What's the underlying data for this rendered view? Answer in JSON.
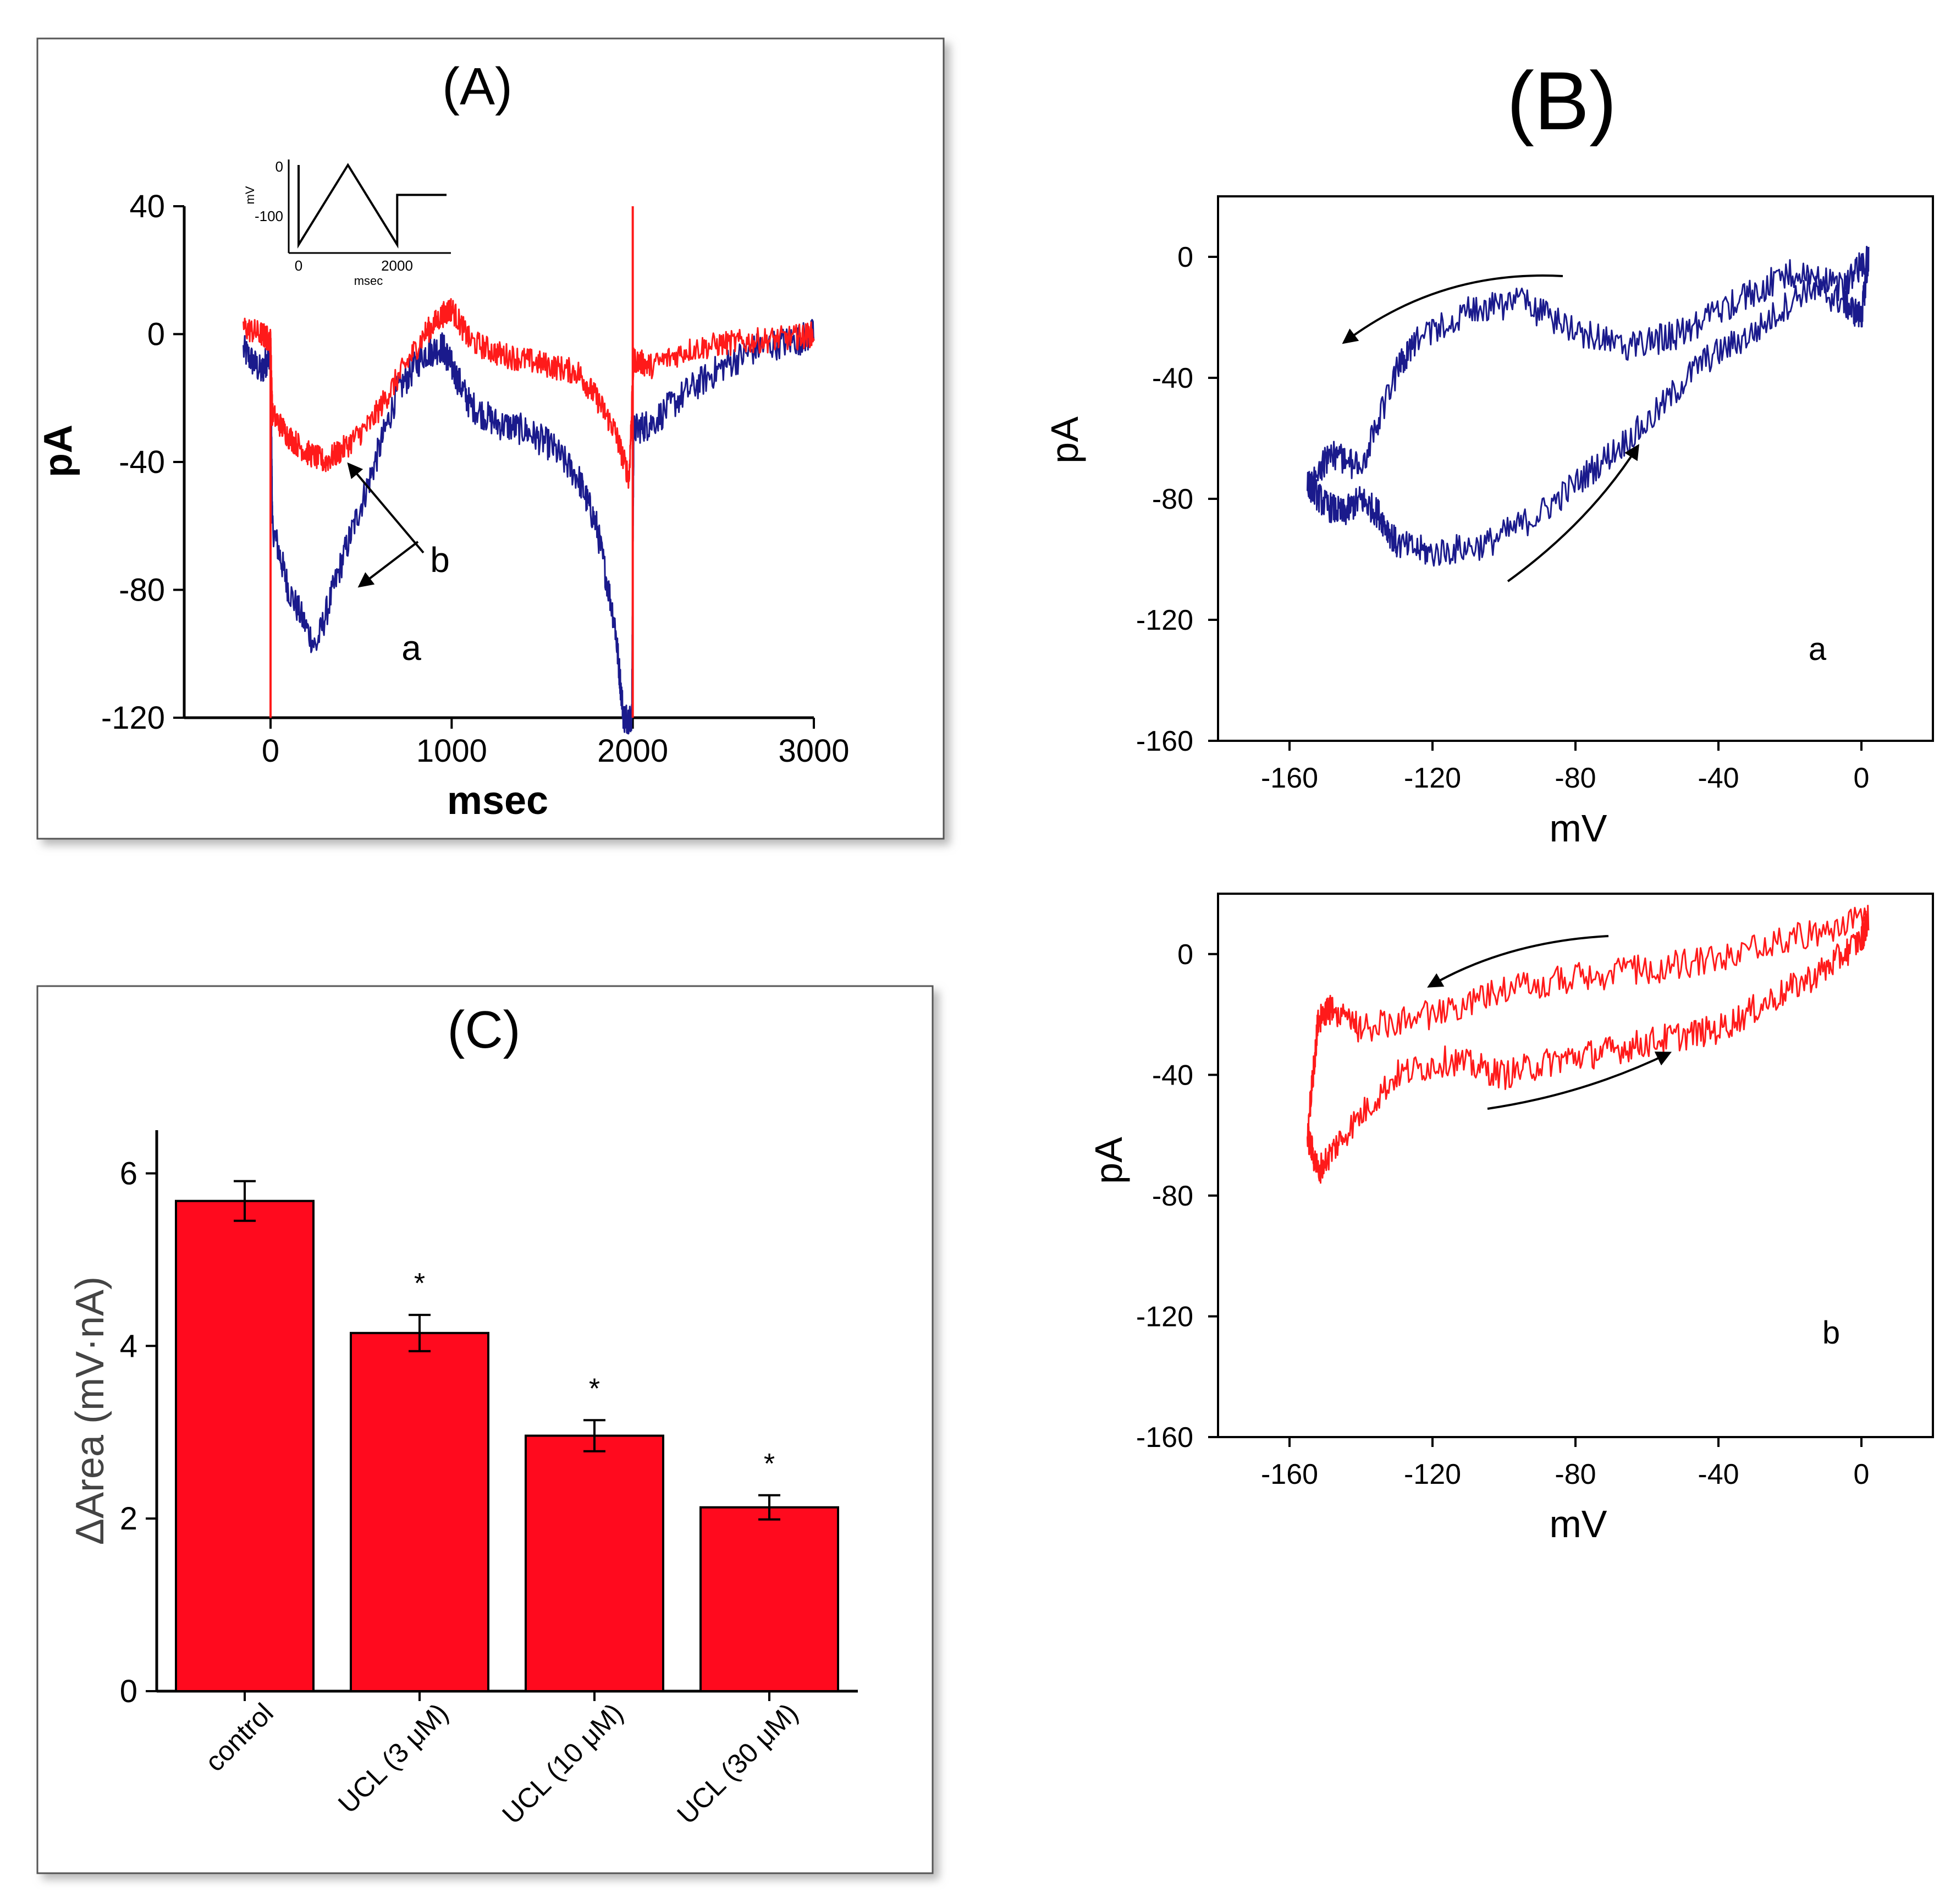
{
  "colors": {
    "trace_a": "#1a1a8c",
    "trace_b": "#ff1a1a",
    "bar": "#ff0a1e",
    "axis": "#000000"
  },
  "panels": {
    "A": {
      "label": "(A)"
    },
    "B": {
      "label": "(B)"
    },
    "C": {
      "label": "(C)"
    }
  },
  "chart_data": [
    {
      "id": "A",
      "type": "line",
      "title": "(A)",
      "xlabel": "msec",
      "ylabel": "pA",
      "xlim": [
        -500,
        3000
      ],
      "ylim": [
        -120,
        40
      ],
      "xticks": [
        "0",
        "1000",
        "2000",
        "3000"
      ],
      "yticks": [
        "40",
        "0",
        "-40",
        "-80",
        "-120"
      ],
      "annotations": [
        "a",
        "b"
      ],
      "series": [
        {
          "name": "a",
          "color": "#1a1a8c",
          "x": [
            -150,
            -50,
            0,
            10,
            100,
            250,
            400,
            550,
            700,
            850,
            950,
            1000,
            1100,
            1250,
            1400,
            1550,
            1700,
            1800,
            1900,
            1950,
            1995,
            2005,
            2100,
            2300,
            2500,
            2700,
            2900,
            3000
          ],
          "y": [
            -5,
            -12,
            -5,
            -60,
            -80,
            -98,
            -70,
            -45,
            -18,
            -6,
            -4,
            -10,
            -22,
            -28,
            -30,
            -35,
            -45,
            -60,
            -90,
            -120,
            -120,
            -30,
            -28,
            -18,
            -10,
            -4,
            -2,
            0
          ]
        },
        {
          "name": "b",
          "color": "#ff1a1a",
          "x": [
            -150,
            -50,
            0,
            10,
            100,
            200,
            300,
            400,
            550,
            700,
            850,
            950,
            1000,
            1100,
            1250,
            1400,
            1550,
            1700,
            1800,
            1900,
            1980,
            2005,
            2100,
            2300,
            2500,
            2700,
            2900,
            3000
          ],
          "y": [
            2,
            0,
            -2,
            -25,
            -32,
            -37,
            -40,
            -36,
            -28,
            -14,
            0,
            6,
            8,
            -2,
            -6,
            -8,
            -10,
            -12,
            -20,
            -30,
            -45,
            -8,
            -10,
            -5,
            -3,
            -2,
            -1,
            0
          ]
        }
      ],
      "inset": {
        "ylabel": "mV",
        "xlabel": "msec",
        "yticks": [
          "0",
          "-100"
        ],
        "xticks": [
          "0",
          "2000"
        ],
        "x": [
          0,
          0,
          1000,
          2000,
          2000,
          3000
        ],
        "y": [
          0,
          -160,
          0,
          -160,
          -60,
          -60
        ]
      }
    },
    {
      "id": "B-a",
      "type": "line",
      "panel_label": "a",
      "xlabel": "mV",
      "ylabel": "pA",
      "xlim": [
        -180,
        20
      ],
      "ylim": [
        -160,
        20
      ],
      "xticks": [
        "-160",
        "-120",
        "-80",
        "-40",
        "0"
      ],
      "yticks": [
        "0",
        "-40",
        "-80",
        "-120",
        "-160"
      ],
      "series": [
        {
          "name": "",
          "color": "#1a1a8c",
          "x": [
            2,
            -5,
            -20,
            -35,
            -50,
            -65,
            -80,
            -95,
            -110,
            -125,
            -130,
            -140,
            -148,
            -155,
            -150,
            -145,
            -140,
            -135,
            -130,
            -120,
            -105,
            -90,
            -75,
            -60,
            -45,
            -30,
            -15,
            -5,
            0,
            2
          ],
          "y": [
            0,
            -10,
            -5,
            -15,
            -25,
            -30,
            -25,
            -15,
            -18,
            -28,
            -38,
            -70,
            -65,
            -75,
            -82,
            -85,
            -80,
            -85,
            -95,
            -98,
            -95,
            -85,
            -70,
            -55,
            -35,
            -25,
            -10,
            -15,
            -20,
            0
          ]
        }
      ]
    },
    {
      "id": "B-b",
      "type": "line",
      "panel_label": "b",
      "xlabel": "mV",
      "ylabel": "pA",
      "xlim": [
        -180,
        20
      ],
      "ylim": [
        -160,
        20
      ],
      "xticks": [
        "-160",
        "-120",
        "-80",
        "-40",
        "0"
      ],
      "yticks": [
        "0",
        "-40",
        "-80",
        "-120",
        "-160"
      ],
      "series": [
        {
          "name": "",
          "color": "#ff1a1a",
          "x": [
            2,
            -20,
            -40,
            -60,
            -80,
            -100,
            -120,
            -140,
            -148,
            -152,
            -155,
            -152,
            -145,
            -130,
            -115,
            -100,
            -85,
            -70,
            -55,
            -40,
            -25,
            -10,
            0,
            2
          ],
          "y": [
            12,
            5,
            -2,
            -5,
            -8,
            -12,
            -20,
            -25,
            -18,
            -22,
            -60,
            -72,
            -60,
            -40,
            -35,
            -40,
            -35,
            -32,
            -28,
            -25,
            -15,
            -5,
            5,
            12
          ]
        }
      ]
    },
    {
      "id": "C",
      "type": "bar",
      "title": "(C)",
      "xlabel": "",
      "ylabel": "ΔArea (mV·nA)",
      "ylim": [
        0,
        6.5
      ],
      "yticks": [
        "0",
        "2",
        "4",
        "6"
      ],
      "categories": [
        "control",
        "UCL (3 μM)",
        "UCL (10 μM)",
        "UCL (30 μM)"
      ],
      "values": [
        5.68,
        4.15,
        2.96,
        2.13
      ],
      "errors": [
        0.23,
        0.21,
        0.18,
        0.14
      ],
      "significance": [
        "",
        "*",
        "*",
        "*"
      ]
    }
  ]
}
